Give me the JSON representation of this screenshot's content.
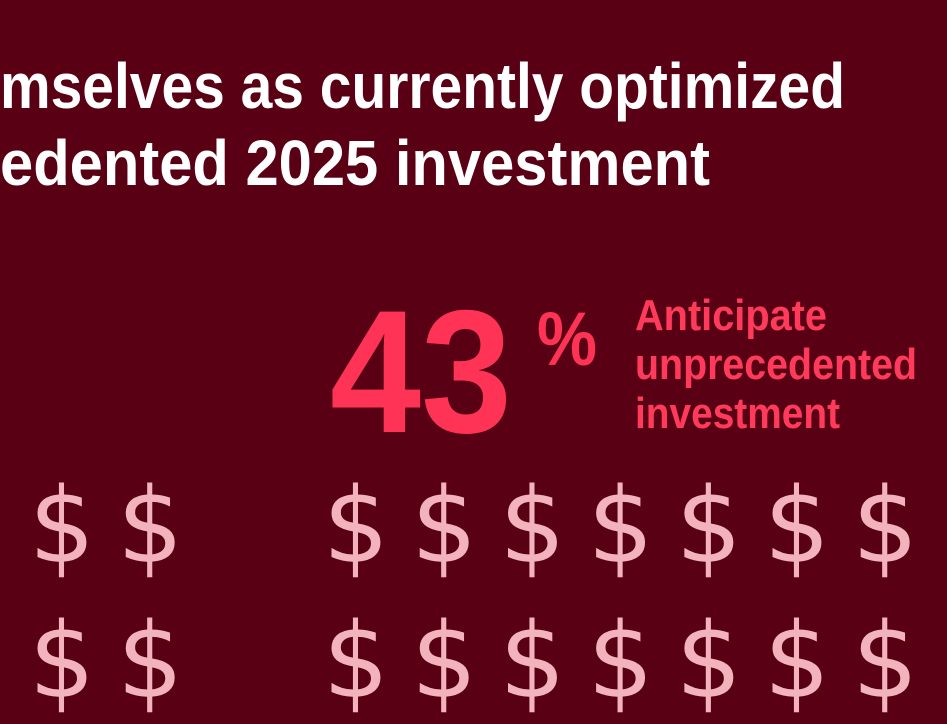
{
  "title": {
    "lines": [
      "mselves as currently optimized",
      "edented 2025 investment"
    ]
  },
  "stat": {
    "value": 43,
    "unit": "%",
    "label": [
      "Anticipate",
      "unprecedented",
      "investment"
    ]
  },
  "dollar_groups": [
    {
      "rows": [
        [
          "$",
          "$"
        ],
        [
          "$",
          "$"
        ]
      ]
    },
    {
      "rows": [
        [
          "$",
          "$",
          "$",
          "$",
          "$",
          "$",
          "$"
        ],
        [
          "$",
          "$",
          "$",
          "$",
          "$",
          "$",
          "$"
        ]
      ]
    }
  ]
}
